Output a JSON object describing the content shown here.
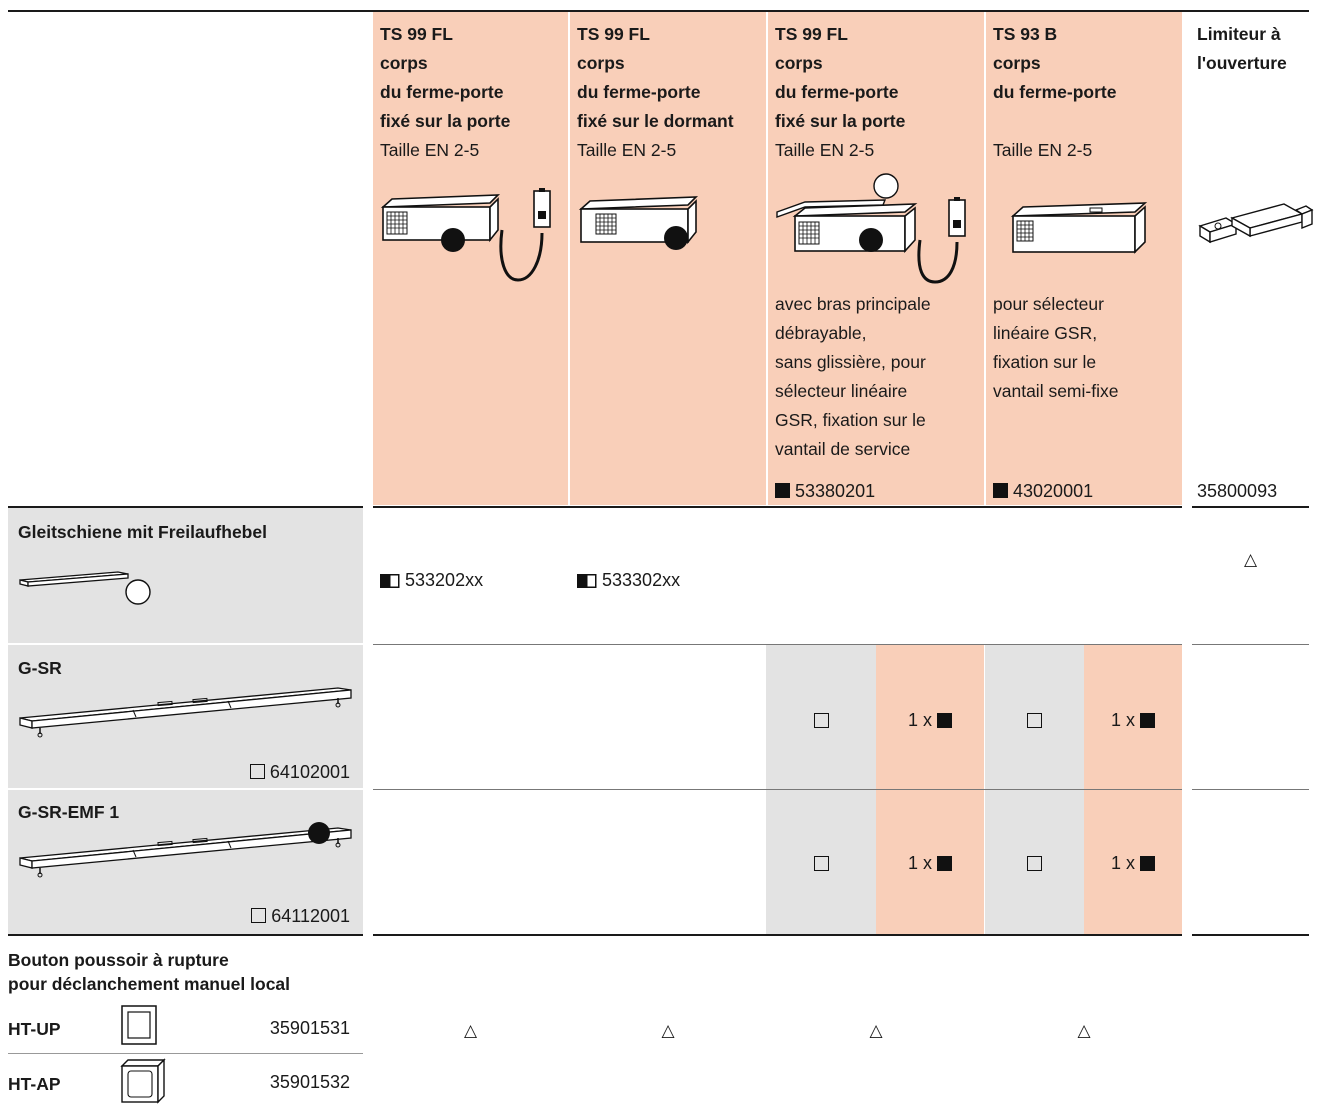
{
  "columns": [
    {
      "title_lines": [
        "TS 99 FL",
        "corps",
        "du ferme-porte",
        "fixé sur la porte"
      ],
      "size": "Taille EN 2-5",
      "note": [],
      "code_mark": "",
      "code": ""
    },
    {
      "title_lines": [
        "TS 99 FL",
        "corps",
        "du ferme-porte",
        "fixé sur le dormant"
      ],
      "size": "Taille EN 2-5",
      "note": [],
      "code_mark": "",
      "code": ""
    },
    {
      "title_lines": [
        "TS 99 FL",
        "corps",
        "du ferme-porte",
        "fixé sur la porte"
      ],
      "size": "Taille EN 2-5",
      "note": [
        "avec bras principale",
        "débrayable,",
        "sans glissière, pour",
        "sélecteur linéaire",
        "GSR, fixation sur le",
        "vantail de service"
      ],
      "code_mark": "filled-square",
      "code": "53380201"
    },
    {
      "title_lines": [
        "TS 93 B",
        "corps",
        "du ferme-porte",
        ""
      ],
      "size": "Taille EN 2-5",
      "note": [
        "pour sélecteur",
        "linéaire GSR,",
        "fixation sur le",
        "vantail semi-fixe"
      ],
      "code_mark": "filled-square",
      "code": "43020001"
    },
    {
      "title_lines": [
        "Limiteur à",
        "l'ouverture"
      ],
      "size": "",
      "note": [],
      "code_mark": "",
      "code": "35800093"
    }
  ],
  "rows": {
    "gleitschiene": {
      "label": "Gleitschiene mit Freilaufhebel",
      "cells": [
        {
          "mark": "half-square",
          "code": "533202xx"
        },
        {
          "mark": "half-square",
          "code": "533302xx"
        }
      ],
      "limiter_mark": "△"
    },
    "gsr": {
      "label": "G-SR",
      "code_mark": "open-square",
      "code": "64102001",
      "cells": [
        "□",
        "1 x",
        "□",
        "1 x"
      ]
    },
    "gsr_emf": {
      "label": "G-SR-EMF 1",
      "code_mark": "open-square",
      "code": "64112001",
      "cells": [
        "□",
        "1 x",
        "□",
        "1 x"
      ]
    },
    "bouton": {
      "label_line1": "Bouton poussoir à rupture",
      "label_line2": "pour déclanchement manuel local",
      "items": [
        {
          "name": "HT-UP",
          "code": "35901531"
        },
        {
          "name": "HT-AP",
          "code": "35901532"
        }
      ],
      "marks": [
        "△",
        "△",
        "△",
        "△"
      ]
    }
  },
  "colors": {
    "salmon": "#f9cfb9",
    "gray": "#e3e3e3",
    "ink": "#1a1a1a"
  }
}
